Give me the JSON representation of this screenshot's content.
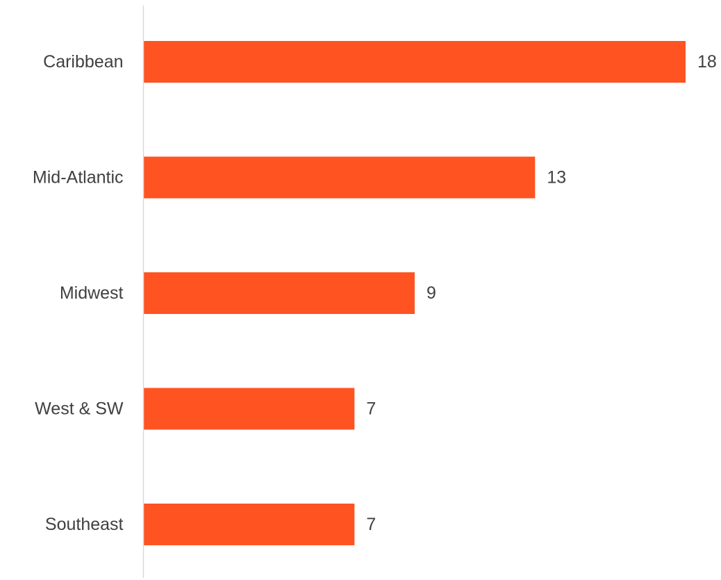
{
  "chart_data": {
    "type": "bar",
    "orientation": "horizontal",
    "categories": [
      "Caribbean",
      "Mid-Atlantic",
      "Midwest",
      "West & SW",
      "Southeast"
    ],
    "values": [
      18,
      13,
      9,
      7,
      7
    ],
    "data_labels": [
      "18",
      "13",
      "9",
      "7",
      "7"
    ],
    "title": "",
    "xlabel": "",
    "ylabel": "",
    "xlim": [
      0,
      18
    ],
    "grid": false,
    "bar_color": "#FF5322",
    "axis_color": "#D9D9D9",
    "text_color": "#404040"
  }
}
